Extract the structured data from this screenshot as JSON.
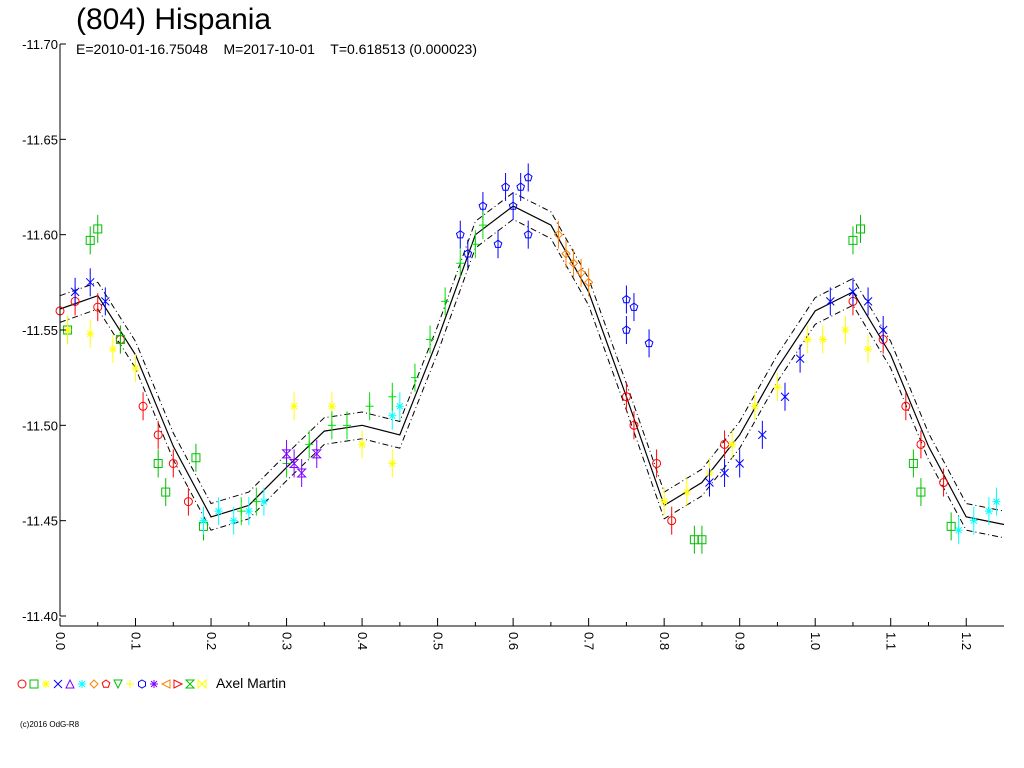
{
  "title": "(804) Hispania",
  "subtitle": "E=2010-01-16.75048    M=2017-10-01    T=0.618513 (0.000023)",
  "observer": "Axel Martin",
  "credit": "(c)2016 OdG-R8",
  "chart_data": {
    "type": "scatter",
    "title": "(804) Hispania",
    "xlabel": "",
    "ylabel": "",
    "xlim": [
      0.0,
      1.25
    ],
    "ylim": [
      -11.7,
      -11.4
    ],
    "y_inverted": true,
    "x_ticks": [
      "0.0",
      "0.1",
      "0.2",
      "0.3",
      "0.4",
      "0.5",
      "0.6",
      "0.7",
      "0.8",
      "0.9",
      "1.0",
      "1.1",
      "1.2"
    ],
    "y_ticks": [
      "-11.70",
      "-11.65",
      "-11.60",
      "-11.55",
      "-11.50",
      "-11.45",
      "-11.40"
    ],
    "legend_position": "bottom-left",
    "legend_symbols": [
      "circle",
      "square",
      "star",
      "x-cross",
      "triangle-up",
      "star",
      "diamond",
      "pentagon",
      "triangle-down",
      "cross",
      "hexagon",
      "asterisk",
      "triangle-left",
      "triangle-right",
      "hourglass",
      "bowtie"
    ],
    "legend_colors": [
      "#ff0000",
      "#00c000",
      "#ffff00",
      "#0000ff",
      "#8000ff",
      "#00ffff",
      "#ff8000",
      "#ff0000",
      "#00c000",
      "#ffff00",
      "#0000ff",
      "#8000ff",
      "#ff8000",
      "#ff0000",
      "#00c000",
      "#ffff00"
    ],
    "fit_curve": {
      "x": [
        0.0,
        0.05,
        0.1,
        0.15,
        0.2,
        0.25,
        0.3,
        0.35,
        0.4,
        0.45,
        0.5,
        0.55,
        0.6,
        0.65,
        0.7,
        0.75,
        0.8,
        0.85,
        0.9,
        0.95,
        1.0,
        1.05,
        1.1,
        1.15,
        1.2,
        1.25
      ],
      "y": [
        -11.561,
        -11.568,
        -11.537,
        -11.489,
        -11.452,
        -11.458,
        -11.478,
        -11.497,
        -11.5,
        -11.495,
        -11.545,
        -11.6,
        -11.615,
        -11.605,
        -11.57,
        -11.515,
        -11.458,
        -11.47,
        -11.495,
        -11.53,
        -11.56,
        -11.57,
        -11.537,
        -11.489,
        -11.452,
        -11.448
      ],
      "band_width": 0.007
    },
    "series": [
      {
        "color": "#ff0000",
        "marker": "circle",
        "x": [
          0.0,
          0.02,
          0.05,
          0.08,
          0.11,
          0.13,
          0.15,
          0.17,
          0.75,
          0.76,
          0.79,
          0.81,
          0.88,
          1.05,
          1.09,
          1.12,
          1.14,
          1.17
        ],
        "y": [
          -11.56,
          -11.565,
          -11.562,
          -11.545,
          -11.51,
          -11.495,
          -11.48,
          -11.46,
          -11.515,
          -11.5,
          -11.48,
          -11.45,
          -11.49,
          -11.565,
          -11.545,
          -11.51,
          -11.49,
          -11.47
        ]
      },
      {
        "color": "#00c000",
        "marker": "square",
        "x": [
          0.01,
          0.04,
          0.05,
          0.08,
          0.13,
          0.14,
          0.18,
          0.19,
          0.84,
          0.85,
          1.05,
          1.06,
          1.13,
          1.14,
          1.18
        ],
        "y": [
          -11.55,
          -11.597,
          -11.603,
          -11.545,
          -11.48,
          -11.465,
          -11.483,
          -11.447,
          -11.44,
          -11.44,
          -11.597,
          -11.603,
          -11.48,
          -11.465,
          -11.447
        ]
      },
      {
        "color": "#ffff00",
        "marker": "star",
        "x": [
          0.01,
          0.04,
          0.07,
          0.1,
          0.31,
          0.36,
          0.4,
          0.44,
          0.8,
          0.83,
          0.86,
          0.89,
          0.92,
          0.95,
          0.99,
          1.01,
          1.04,
          1.07
        ],
        "y": [
          -11.55,
          -11.548,
          -11.54,
          -11.53,
          -11.51,
          -11.51,
          -11.49,
          -11.48,
          -11.46,
          -11.465,
          -11.475,
          -11.49,
          -11.51,
          -11.52,
          -11.545,
          -11.545,
          -11.55,
          -11.54
        ]
      },
      {
        "color": "#0000ff",
        "marker": "pentagon",
        "x": [
          0.53,
          0.54,
          0.56,
          0.58,
          0.59,
          0.6,
          0.61,
          0.62,
          0.62,
          0.75,
          0.76,
          0.75,
          0.78
        ],
        "y": [
          -11.6,
          -11.59,
          -11.615,
          -11.595,
          -11.625,
          -11.615,
          -11.625,
          -11.63,
          -11.6,
          -11.566,
          -11.562,
          -11.55,
          -11.543
        ]
      },
      {
        "color": "#0000ff",
        "marker": "x-cross",
        "x": [
          0.02,
          0.04,
          0.06,
          0.86,
          0.88,
          0.9,
          0.93,
          0.96,
          0.98,
          1.02,
          1.05,
          1.07,
          1.09
        ],
        "y": [
          -11.57,
          -11.575,
          -11.565,
          -11.47,
          -11.475,
          -11.48,
          -11.495,
          -11.515,
          -11.535,
          -11.565,
          -11.57,
          -11.565,
          -11.55
        ]
      },
      {
        "color": "#00ffff",
        "marker": "star",
        "x": [
          0.19,
          0.21,
          0.23,
          0.25,
          0.27,
          0.44,
          0.45,
          1.19,
          1.21,
          1.23,
          1.24
        ],
        "y": [
          -11.45,
          -11.455,
          -11.45,
          -11.455,
          -11.46,
          -11.505,
          -11.51,
          -11.445,
          -11.45,
          -11.455,
          -11.46
        ]
      },
      {
        "color": "#00e000",
        "marker": "cross",
        "x": [
          0.24,
          0.26,
          0.3,
          0.33,
          0.36,
          0.38,
          0.41,
          0.44,
          0.47,
          0.49,
          0.51,
          0.53,
          0.55,
          0.56
        ],
        "y": [
          -11.455,
          -11.46,
          -11.48,
          -11.49,
          -11.5,
          -11.5,
          -11.51,
          -11.515,
          -11.525,
          -11.545,
          -11.565,
          -11.585,
          -11.595,
          -11.605
        ]
      },
      {
        "color": "#ff8000",
        "marker": "diamond",
        "x": [
          0.66,
          0.67,
          0.68,
          0.69,
          0.7
        ],
        "y": [
          -11.6,
          -11.59,
          -11.585,
          -11.58,
          -11.575
        ]
      },
      {
        "color": "#8000ff",
        "marker": "hourglass",
        "x": [
          0.3,
          0.31,
          0.32,
          0.34
        ],
        "y": [
          -11.485,
          -11.48,
          -11.475,
          -11.485
        ]
      }
    ]
  }
}
